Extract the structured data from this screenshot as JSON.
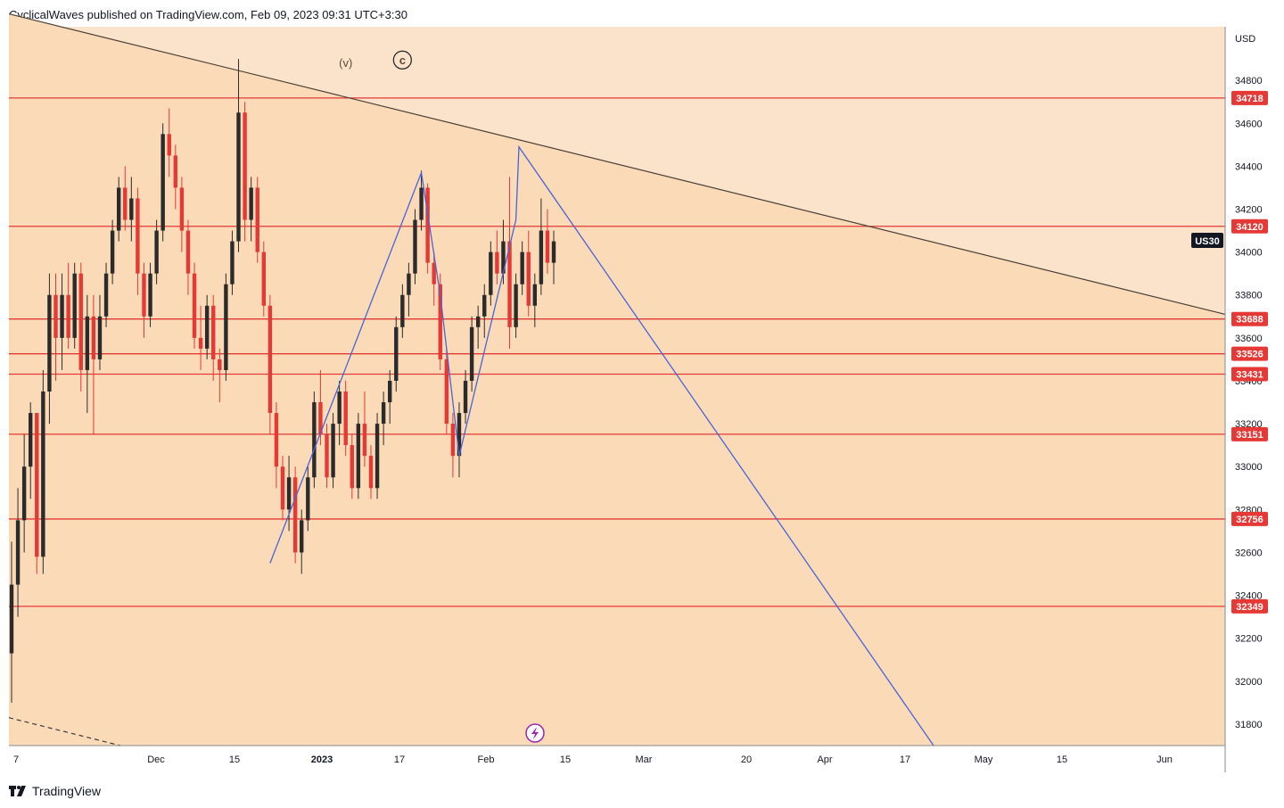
{
  "header": {
    "publisher_line": "CyclicalWaves published on TradingView.com, Feb 09, 2023 09:31 UTC+3:30"
  },
  "footer": {
    "brand": "TradingView"
  },
  "colors": {
    "zone_upper": "#fbe3cb",
    "zone_lower": "#fbdab8",
    "level_line": "#e53935",
    "candle_up": "#2b2b2b",
    "candle_down": "#e53935",
    "wave_line": "#4a63d8",
    "trend_line": "#4a3f36",
    "symbol_badge": "#131722",
    "icon_purple": "#9c27b0"
  },
  "chart_data": {
    "type": "candlestick",
    "symbol": "US30",
    "currency": "USD",
    "x_ticks": [
      "7",
      "Dec",
      "15",
      "2023",
      "17",
      "Feb",
      "15",
      "Mar",
      "20",
      "Apr",
      "17",
      "May",
      "15",
      "Jun"
    ],
    "x_ticks_bold": [
      "2023"
    ],
    "y_ticks": [
      34800,
      34600,
      34400,
      34200,
      34000,
      33800,
      33600,
      33400,
      33200,
      33000,
      32800,
      32600,
      32400,
      32200,
      32000,
      31800
    ],
    "ylim": [
      31700,
      35050
    ],
    "levels": [
      34718,
      34120,
      33688,
      33526,
      33431,
      33151,
      32756,
      32349
    ],
    "annotations": [
      {
        "text": "(v)",
        "bar_index": 53,
        "price": 34880
      },
      {
        "text": "c",
        "bar_index": 62,
        "price": 34895,
        "style": "circled"
      }
    ],
    "candles_ohlc": [
      [
        32130,
        32650,
        31900,
        32450
      ],
      [
        32450,
        32900,
        32300,
        32750
      ],
      [
        32750,
        33150,
        32600,
        33000
      ],
      [
        33000,
        33300,
        32850,
        33250
      ],
      [
        33250,
        33200,
        32500,
        32580
      ],
      [
        32580,
        33450,
        32500,
        33350
      ],
      [
        33350,
        33900,
        33200,
        33800
      ],
      [
        33800,
        33900,
        33400,
        33600
      ],
      [
        33600,
        33900,
        33450,
        33800
      ],
      [
        33800,
        33950,
        33550,
        33600
      ],
      [
        33600,
        33950,
        33550,
        33900
      ],
      [
        33900,
        33950,
        33350,
        33450
      ],
      [
        33450,
        33800,
        33250,
        33700
      ],
      [
        33700,
        33800,
        33150,
        33500
      ],
      [
        33500,
        33800,
        33450,
        33700
      ],
      [
        33700,
        33950,
        33650,
        33900
      ],
      [
        33900,
        34150,
        33850,
        34100
      ],
      [
        34100,
        34350,
        34050,
        34300
      ],
      [
        34300,
        34400,
        34100,
        34150
      ],
      [
        34150,
        34350,
        34050,
        34250
      ],
      [
        34250,
        34300,
        33800,
        33900
      ],
      [
        33900,
        33950,
        33600,
        33700
      ],
      [
        33700,
        33950,
        33650,
        33900
      ],
      [
        33900,
        34150,
        33850,
        34100
      ],
      [
        34100,
        34600,
        34050,
        34550
      ],
      [
        34550,
        34670,
        34350,
        34450
      ],
      [
        34450,
        34500,
        34200,
        34300
      ],
      [
        34300,
        34350,
        34000,
        34100
      ],
      [
        34100,
        34150,
        33800,
        33900
      ],
      [
        33900,
        33950,
        33550,
        33600
      ],
      [
        33600,
        33750,
        33450,
        33550
      ],
      [
        33550,
        33800,
        33500,
        33750
      ],
      [
        33750,
        33800,
        33400,
        33500
      ],
      [
        33500,
        33550,
        33300,
        33450
      ],
      [
        33450,
        33900,
        33400,
        33850
      ],
      [
        33850,
        34100,
        33800,
        34050
      ],
      [
        34050,
        34900,
        34000,
        34650
      ],
      [
        34650,
        34700,
        34050,
        34150
      ],
      [
        34150,
        34350,
        34050,
        34300
      ],
      [
        34300,
        34350,
        33950,
        34000
      ],
      [
        34000,
        34050,
        33700,
        33750
      ],
      [
        33750,
        33800,
        33150,
        33250
      ],
      [
        33250,
        33300,
        32900,
        33000
      ],
      [
        33000,
        33050,
        32750,
        32800
      ],
      [
        32800,
        33050,
        32700,
        32950
      ],
      [
        32950,
        33000,
        32550,
        32600
      ],
      [
        32600,
        32800,
        32500,
        32750
      ],
      [
        32750,
        33000,
        32700,
        32950
      ],
      [
        32950,
        33350,
        32900,
        33300
      ],
      [
        33300,
        33450,
        33100,
        33150
      ],
      [
        33150,
        33200,
        32900,
        32950
      ],
      [
        32950,
        33250,
        32900,
        33200
      ],
      [
        33200,
        33400,
        33100,
        33350
      ],
      [
        33350,
        33400,
        33050,
        33100
      ],
      [
        33100,
        33150,
        32850,
        32900
      ],
      [
        32900,
        33250,
        32850,
        33200
      ],
      [
        33200,
        33350,
        33000,
        33050
      ],
      [
        33050,
        33100,
        32850,
        32900
      ],
      [
        32900,
        33250,
        32850,
        33200
      ],
      [
        33200,
        33350,
        33100,
        33300
      ],
      [
        33300,
        33450,
        33200,
        33400
      ],
      [
        33400,
        33700,
        33350,
        33650
      ],
      [
        33650,
        33850,
        33600,
        33800
      ],
      [
        33800,
        33950,
        33700,
        33900
      ],
      [
        33900,
        34200,
        33850,
        34150
      ],
      [
        34150,
        34380,
        34100,
        34300
      ],
      [
        34300,
        34320,
        33900,
        33950
      ],
      [
        33950,
        34000,
        33750,
        33850
      ],
      [
        33850,
        33900,
        33450,
        33500
      ],
      [
        33500,
        33550,
        33150,
        33200
      ],
      [
        33200,
        33250,
        32950,
        33050
      ],
      [
        33050,
        33300,
        32950,
        33250
      ],
      [
        33250,
        33450,
        33200,
        33400
      ],
      [
        33400,
        33700,
        33350,
        33650
      ],
      [
        33650,
        33750,
        33550,
        33700
      ],
      [
        33700,
        33850,
        33600,
        33800
      ],
      [
        33800,
        34050,
        33750,
        34000
      ],
      [
        34000,
        34100,
        33850,
        33900
      ],
      [
        33900,
        34150,
        33850,
        34050
      ],
      [
        34050,
        34350,
        33550,
        33650
      ],
      [
        33650,
        33900,
        33600,
        33850
      ],
      [
        33850,
        34050,
        33800,
        34000
      ],
      [
        34000,
        34100,
        33700,
        33750
      ],
      [
        33750,
        33900,
        33650,
        33850
      ],
      [
        33850,
        34250,
        33800,
        34100
      ],
      [
        34100,
        34200,
        33900,
        33950
      ],
      [
        33950,
        34100,
        33850,
        34050
      ]
    ],
    "wave_path": [
      {
        "bar_index": 41,
        "price": 32550
      },
      {
        "bar_index": 65,
        "price": 34370
      },
      {
        "bar_index": 68,
        "price": 33800
      },
      {
        "bar_index": 71,
        "price": 33050
      },
      {
        "bar_index": 80,
        "price": 34150
      },
      {
        "date": "Feb 08, 2023",
        "price": 34490
      },
      {
        "date": "Apr 24, 2023",
        "price": 31700
      }
    ],
    "trendline": {
      "from": {
        "date": "Nov 2022",
        "price": 35110
      },
      "to": {
        "date": "Jun 2023",
        "price": 33710
      }
    },
    "secondary_trendline": {
      "style": "dashed",
      "from_price": 31830,
      "to_price": 31700
    }
  }
}
